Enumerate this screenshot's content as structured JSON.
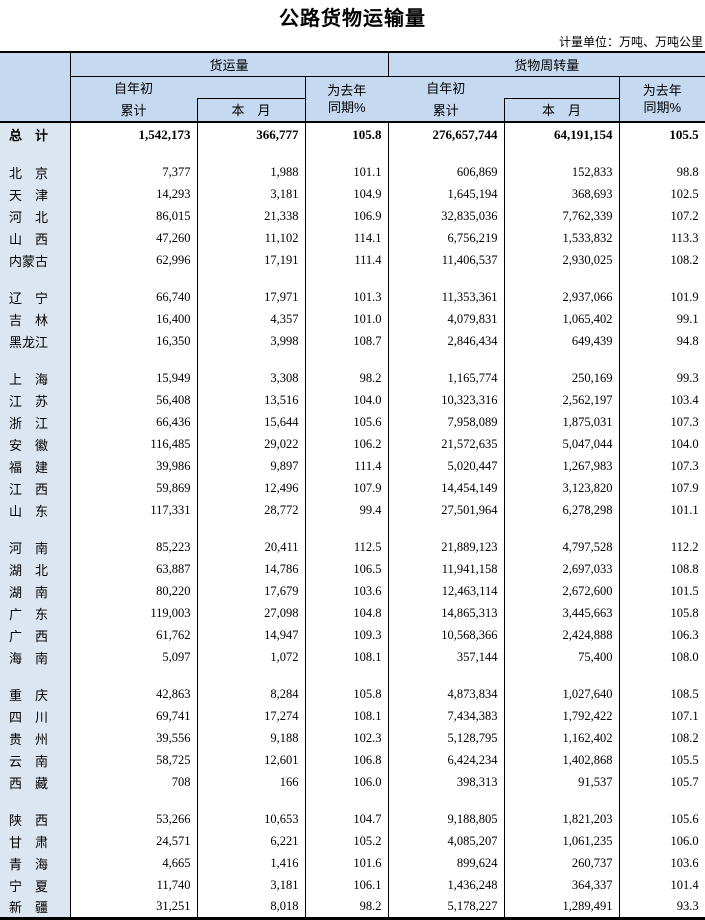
{
  "title": "公路货物运输量",
  "unit_note": "计量单位：万吨、万吨公里",
  "colors": {
    "header_bg": "#C5D9F1",
    "region_col_bg": "#DCE6F1",
    "border": "#000000",
    "text": "#000000"
  },
  "table": {
    "headers": {
      "freight_volume": "货运量",
      "freight_turnover": "货物周转量",
      "cumulative_top": "自年初",
      "cumulative_bottom": "累计",
      "month": "本　月",
      "yoy_top": "为去年",
      "yoy_bottom": "同期%"
    },
    "total_row": {
      "region": "总　计",
      "values": [
        "1,542,173",
        "366,777",
        "105.8",
        "276,657,744",
        "64,191,154",
        "105.5"
      ]
    },
    "groups": [
      {
        "rows": [
          {
            "region": "北　京",
            "values": [
              "7,377",
              "1,988",
              "101.1",
              "606,869",
              "152,833",
              "98.8"
            ]
          },
          {
            "region": "天　津",
            "values": [
              "14,293",
              "3,181",
              "104.9",
              "1,645,194",
              "368,693",
              "102.5"
            ]
          },
          {
            "region": "河　北",
            "values": [
              "86,015",
              "21,338",
              "106.9",
              "32,835,036",
              "7,762,339",
              "107.2"
            ]
          },
          {
            "region": "山　西",
            "values": [
              "47,260",
              "11,102",
              "114.1",
              "6,756,219",
              "1,533,832",
              "113.3"
            ]
          },
          {
            "region": "内蒙古",
            "values": [
              "62,996",
              "17,191",
              "111.4",
              "11,406,537",
              "2,930,025",
              "108.2"
            ]
          }
        ]
      },
      {
        "rows": [
          {
            "region": "辽　宁",
            "values": [
              "66,740",
              "17,971",
              "101.3",
              "11,353,361",
              "2,937,066",
              "101.9"
            ]
          },
          {
            "region": "吉　林",
            "values": [
              "16,400",
              "4,357",
              "101.0",
              "4,079,831",
              "1,065,402",
              "99.1"
            ]
          },
          {
            "region": "黑龙江",
            "values": [
              "16,350",
              "3,998",
              "108.7",
              "2,846,434",
              "649,439",
              "94.8"
            ]
          }
        ]
      },
      {
        "rows": [
          {
            "region": "上　海",
            "values": [
              "15,949",
              "3,308",
              "98.2",
              "1,165,774",
              "250,169",
              "99.3"
            ]
          },
          {
            "region": "江　苏",
            "values": [
              "56,408",
              "13,516",
              "104.0",
              "10,323,316",
              "2,562,197",
              "103.4"
            ]
          },
          {
            "region": "浙　江",
            "values": [
              "66,436",
              "15,644",
              "105.6",
              "7,958,089",
              "1,875,031",
              "107.3"
            ]
          },
          {
            "region": "安　徽",
            "values": [
              "116,485",
              "29,022",
              "106.2",
              "21,572,635",
              "5,047,044",
              "104.0"
            ]
          },
          {
            "region": "福　建",
            "values": [
              "39,986",
              "9,897",
              "111.4",
              "5,020,447",
              "1,267,983",
              "107.3"
            ]
          },
          {
            "region": "江　西",
            "values": [
              "59,869",
              "12,496",
              "107.9",
              "14,454,149",
              "3,123,820",
              "107.9"
            ]
          },
          {
            "region": "山　东",
            "values": [
              "117,331",
              "28,772",
              "99.4",
              "27,501,964",
              "6,278,298",
              "101.1"
            ]
          }
        ]
      },
      {
        "rows": [
          {
            "region": "河　南",
            "values": [
              "85,223",
              "20,411",
              "112.5",
              "21,889,123",
              "4,797,528",
              "112.2"
            ]
          },
          {
            "region": "湖　北",
            "values": [
              "63,887",
              "14,786",
              "106.5",
              "11,941,158",
              "2,697,033",
              "108.8"
            ]
          },
          {
            "region": "湖　南",
            "values": [
              "80,220",
              "17,679",
              "103.6",
              "12,463,114",
              "2,672,600",
              "101.5"
            ]
          },
          {
            "region": "广　东",
            "values": [
              "119,003",
              "27,098",
              "104.8",
              "14,865,313",
              "3,445,663",
              "105.8"
            ]
          },
          {
            "region": "广　西",
            "values": [
              "61,762",
              "14,947",
              "109.3",
              "10,568,366",
              "2,424,888",
              "106.3"
            ]
          },
          {
            "region": "海　南",
            "values": [
              "5,097",
              "1,072",
              "108.1",
              "357,144",
              "75,400",
              "108.0"
            ]
          }
        ]
      },
      {
        "rows": [
          {
            "region": "重　庆",
            "values": [
              "42,863",
              "8,284",
              "105.8",
              "4,873,834",
              "1,027,640",
              "108.5"
            ]
          },
          {
            "region": "四　川",
            "values": [
              "69,741",
              "17,274",
              "108.1",
              "7,434,383",
              "1,792,422",
              "107.1"
            ]
          },
          {
            "region": "贵　州",
            "values": [
              "39,556",
              "9,188",
              "102.3",
              "5,128,795",
              "1,162,402",
              "108.2"
            ]
          },
          {
            "region": "云　南",
            "values": [
              "58,725",
              "12,601",
              "106.8",
              "6,424,234",
              "1,402,868",
              "105.5"
            ]
          },
          {
            "region": "西　藏",
            "values": [
              "708",
              "166",
              "106.0",
              "398,313",
              "91,537",
              "105.7"
            ]
          }
        ]
      },
      {
        "rows": [
          {
            "region": "陕　西",
            "values": [
              "53,266",
              "10,653",
              "104.7",
              "9,188,805",
              "1,821,203",
              "105.6"
            ]
          },
          {
            "region": "甘　肃",
            "values": [
              "24,571",
              "6,221",
              "105.2",
              "4,085,207",
              "1,061,235",
              "106.0"
            ]
          },
          {
            "region": "青　海",
            "values": [
              "4,665",
              "1,416",
              "101.6",
              "899,624",
              "260,737",
              "103.6"
            ]
          },
          {
            "region": "宁　夏",
            "values": [
              "11,740",
              "3,181",
              "106.1",
              "1,436,248",
              "364,337",
              "101.4"
            ]
          },
          {
            "region": "新　疆",
            "values": [
              "31,251",
              "8,018",
              "98.2",
              "5,178,227",
              "1,289,491",
              "93.3"
            ]
          }
        ]
      }
    ]
  }
}
